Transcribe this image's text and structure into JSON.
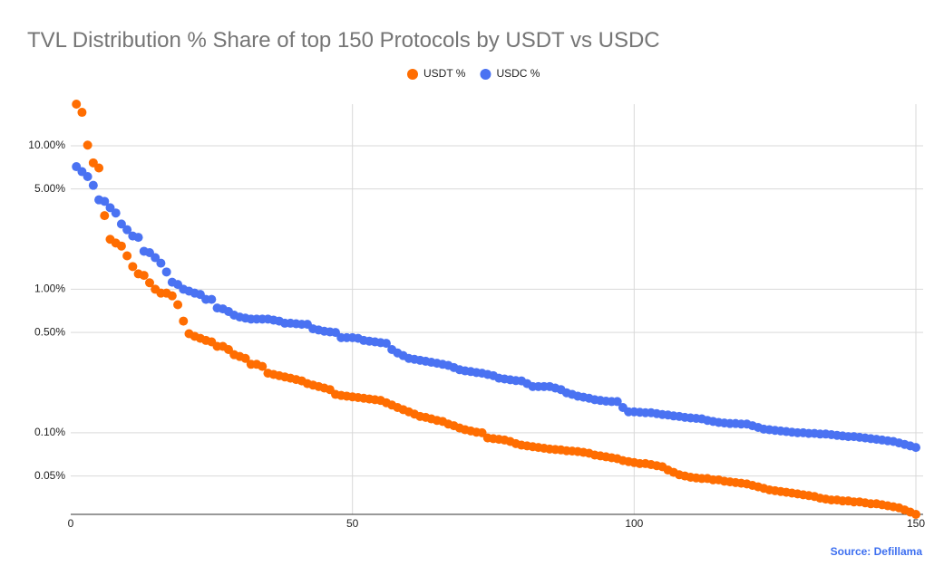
{
  "chart_data": {
    "type": "scatter",
    "title": "TVL Distribution % Share of top 150 Protocols by USDT vs USDC",
    "annotation": "Source: Defillama",
    "log_scale": true,
    "grid": true,
    "legend_position": "top",
    "xlim": [
      0,
      150
    ],
    "xticks": [
      0,
      50,
      100,
      150
    ],
    "ylim": [
      0.027,
      19.5
    ],
    "yticks": [
      {
        "value": 0.05,
        "label": "0.05%"
      },
      {
        "value": 0.1,
        "label": "0.10%"
      },
      {
        "value": 0.5,
        "label": "0.50%"
      },
      {
        "value": 1,
        "label": "1.00%"
      },
      {
        "value": 5,
        "label": "5.00%"
      },
      {
        "value": 10,
        "label": "10.00%"
      }
    ],
    "x": [
      1,
      2,
      3,
      4,
      5,
      6,
      7,
      8,
      9,
      10,
      11,
      12,
      13,
      14,
      15,
      16,
      17,
      18,
      19,
      20,
      21,
      22,
      23,
      24,
      25,
      26,
      27,
      28,
      29,
      30,
      31,
      32,
      33,
      34,
      35,
      36,
      37,
      38,
      39,
      40,
      41,
      42,
      43,
      44,
      45,
      46,
      47,
      48,
      49,
      50,
      51,
      52,
      53,
      54,
      55,
      56,
      57,
      58,
      59,
      60,
      61,
      62,
      63,
      64,
      65,
      66,
      67,
      68,
      69,
      70,
      71,
      72,
      73,
      74,
      75,
      76,
      77,
      78,
      79,
      80,
      81,
      82,
      83,
      84,
      85,
      86,
      87,
      88,
      89,
      90,
      91,
      92,
      93,
      94,
      95,
      96,
      97,
      98,
      99,
      100,
      101,
      102,
      103,
      104,
      105,
      106,
      107,
      108,
      109,
      110,
      111,
      112,
      113,
      114,
      115,
      116,
      117,
      118,
      119,
      120,
      121,
      122,
      123,
      124,
      125,
      126,
      127,
      128,
      129,
      130,
      131,
      132,
      133,
      134,
      135,
      136,
      137,
      138,
      139,
      140,
      141,
      142,
      143,
      144,
      145,
      146,
      147,
      148,
      149,
      150
    ],
    "series": [
      {
        "name": "USDT %",
        "color": "#ff6d01",
        "values": [
          19.5,
          17.1,
          10.1,
          7.6,
          7.0,
          3.26,
          2.23,
          2.1,
          2.0,
          1.71,
          1.44,
          1.28,
          1.25,
          1.11,
          1.0,
          0.94,
          0.94,
          0.9,
          0.78,
          0.6,
          0.49,
          0.47,
          0.455,
          0.44,
          0.43,
          0.4,
          0.4,
          0.38,
          0.35,
          0.34,
          0.33,
          0.3,
          0.3,
          0.29,
          0.26,
          0.255,
          0.25,
          0.245,
          0.24,
          0.235,
          0.23,
          0.22,
          0.215,
          0.21,
          0.205,
          0.2,
          0.185,
          0.182,
          0.18,
          0.178,
          0.176,
          0.174,
          0.172,
          0.17,
          0.168,
          0.162,
          0.156,
          0.15,
          0.145,
          0.14,
          0.135,
          0.13,
          0.128,
          0.125,
          0.122,
          0.12,
          0.115,
          0.112,
          0.108,
          0.105,
          0.103,
          0.101,
          0.1,
          0.092,
          0.091,
          0.09,
          0.089,
          0.087,
          0.084,
          0.082,
          0.081,
          0.08,
          0.079,
          0.078,
          0.077,
          0.0765,
          0.076,
          0.075,
          0.0745,
          0.074,
          0.073,
          0.072,
          0.07,
          0.069,
          0.068,
          0.067,
          0.066,
          0.064,
          0.063,
          0.062,
          0.061,
          0.061,
          0.06,
          0.059,
          0.058,
          0.055,
          0.053,
          0.051,
          0.05,
          0.049,
          0.0485,
          0.048,
          0.048,
          0.047,
          0.047,
          0.046,
          0.0455,
          0.045,
          0.0445,
          0.044,
          0.043,
          0.042,
          0.041,
          0.04,
          0.0395,
          0.039,
          0.0385,
          0.038,
          0.0375,
          0.037,
          0.0365,
          0.036,
          0.035,
          0.0345,
          0.034,
          0.034,
          0.0335,
          0.0335,
          0.033,
          0.033,
          0.0325,
          0.032,
          0.032,
          0.0315,
          0.031,
          0.0305,
          0.03,
          0.029,
          0.028,
          0.027
        ]
      },
      {
        "name": "USDC %",
        "color": "#4a72f2",
        "values": [
          7.15,
          6.6,
          6.1,
          5.3,
          4.2,
          4.1,
          3.7,
          3.4,
          2.85,
          2.6,
          2.35,
          2.3,
          1.84,
          1.8,
          1.66,
          1.52,
          1.32,
          1.12,
          1.08,
          1.0,
          0.97,
          0.94,
          0.92,
          0.85,
          0.85,
          0.74,
          0.73,
          0.7,
          0.66,
          0.64,
          0.63,
          0.62,
          0.62,
          0.62,
          0.62,
          0.61,
          0.6,
          0.58,
          0.58,
          0.575,
          0.57,
          0.57,
          0.53,
          0.52,
          0.51,
          0.505,
          0.5,
          0.46,
          0.46,
          0.46,
          0.455,
          0.44,
          0.435,
          0.43,
          0.425,
          0.42,
          0.38,
          0.36,
          0.345,
          0.33,
          0.325,
          0.32,
          0.315,
          0.31,
          0.305,
          0.3,
          0.295,
          0.285,
          0.275,
          0.27,
          0.267,
          0.263,
          0.26,
          0.255,
          0.25,
          0.24,
          0.237,
          0.234,
          0.231,
          0.23,
          0.22,
          0.21,
          0.21,
          0.21,
          0.21,
          0.205,
          0.2,
          0.19,
          0.185,
          0.18,
          0.177,
          0.174,
          0.17,
          0.168,
          0.166,
          0.165,
          0.165,
          0.15,
          0.14,
          0.14,
          0.139,
          0.138,
          0.138,
          0.136,
          0.134,
          0.133,
          0.131,
          0.13,
          0.128,
          0.127,
          0.126,
          0.125,
          0.122,
          0.12,
          0.118,
          0.117,
          0.116,
          0.116,
          0.115,
          0.115,
          0.112,
          0.109,
          0.106,
          0.105,
          0.104,
          0.103,
          0.102,
          0.101,
          0.1,
          0.1,
          0.099,
          0.099,
          0.098,
          0.098,
          0.097,
          0.096,
          0.095,
          0.094,
          0.094,
          0.093,
          0.092,
          0.091,
          0.09,
          0.089,
          0.088,
          0.087,
          0.085,
          0.083,
          0.081,
          0.079
        ]
      }
    ]
  }
}
